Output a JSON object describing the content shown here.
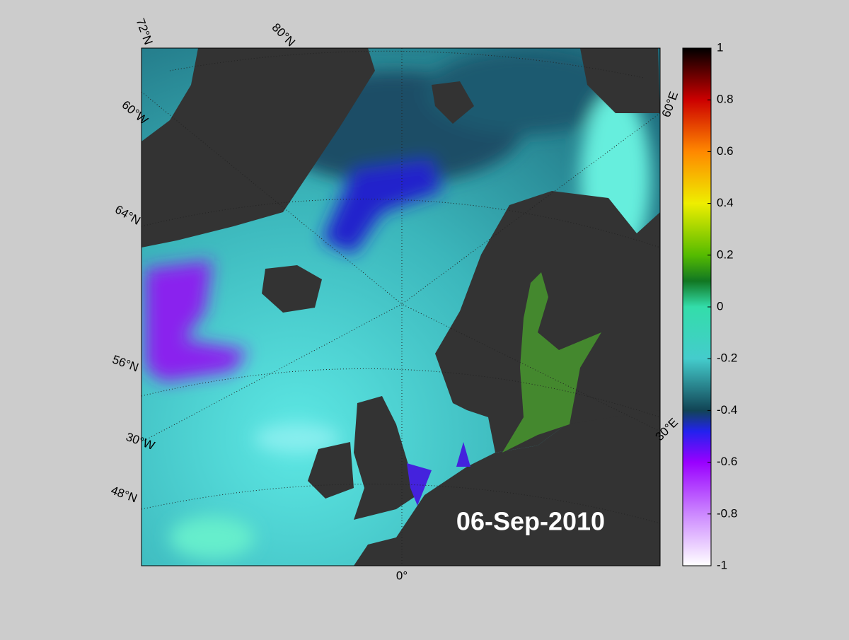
{
  "map": {
    "date": "06-Sep-2010",
    "graticule_labels": [
      "72°N",
      "80°N",
      "60°W",
      "64°N",
      "56°N",
      "30°W",
      "48°N",
      "0°",
      "60°E",
      "30°E"
    ],
    "colorbar": {
      "lim": [
        -1,
        1
      ],
      "ticks": [
        -1,
        -0.8,
        -0.6,
        -0.4,
        -0.2,
        0,
        0.2,
        0.4,
        0.6,
        0.8,
        1
      ]
    }
  }
}
